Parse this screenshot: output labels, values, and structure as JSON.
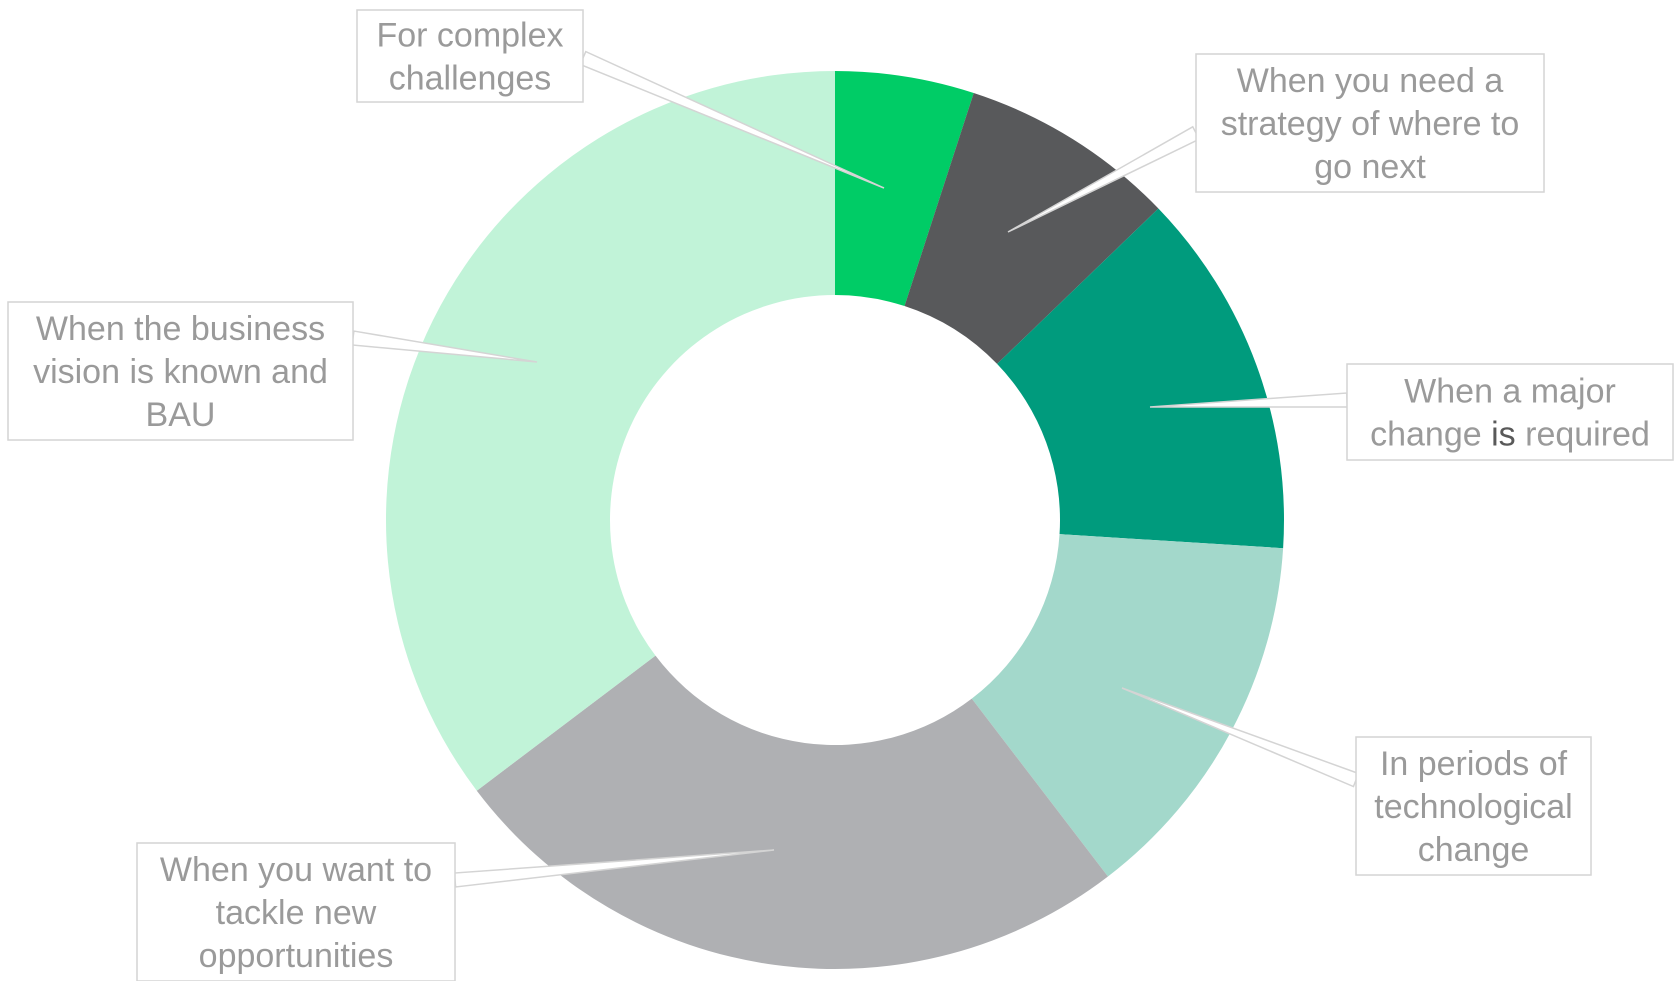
{
  "chart_data": {
    "type": "pie",
    "donut": true,
    "slices": [
      {
        "label": [
          "For complex",
          "challenges"
        ],
        "value": 5,
        "color": "#00cc66"
      },
      {
        "label": [
          "When you need a",
          "strategy of where to",
          "go next"
        ],
        "value": 7.8,
        "color": "#58595b"
      },
      {
        "label": [
          "When a major",
          "change is required"
        ],
        "value": 13.2,
        "color": "#009b7d"
      },
      {
        "label": [
          "In periods of",
          "technological",
          "change"
        ],
        "value": 13.6,
        "color": "#a3d8cb"
      },
      {
        "label": [
          "When you want to",
          "tackle new",
          "opportunities"
        ],
        "value": 25.1,
        "color": "#afb0b3"
      },
      {
        "label": [
          "When the business",
          "vision is known and",
          "BAU"
        ],
        "value": 35.3,
        "color": "#c1f3d8"
      }
    ]
  }
}
